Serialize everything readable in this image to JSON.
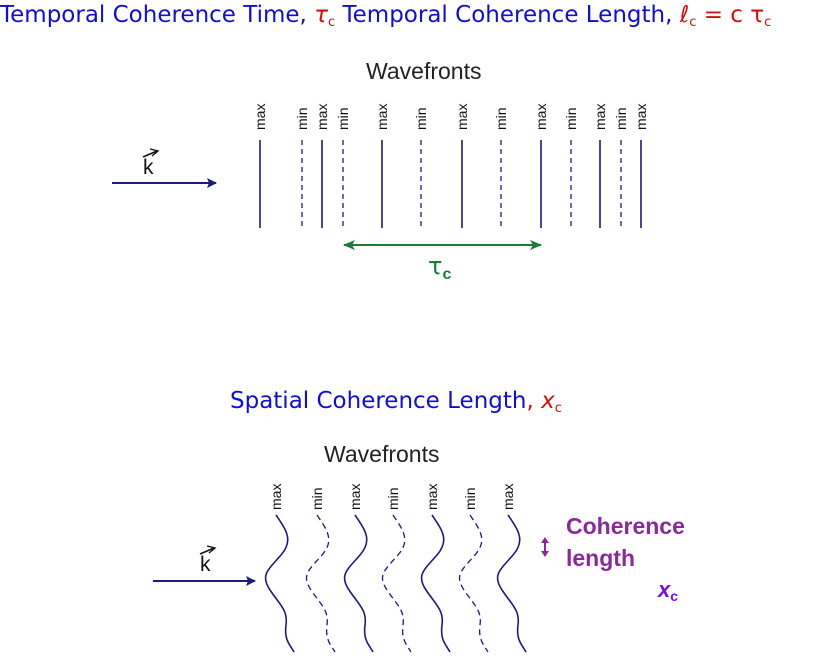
{
  "title_top": {
    "part1": "Temporal Coherence Time, ",
    "tau_symbol": "τ",
    "tau_sub": "c",
    "part2": " Temporal Coherence Length, ",
    "ell_symbol": "ℓ",
    "ell_sub": "c",
    "eq": " = c τ",
    "eq_sub": "c"
  },
  "title_bottom": {
    "part1": "Spatial Coherence Length",
    "comma": ", ",
    "x_symbol": "x",
    "x_sub": "c"
  },
  "temporal_diagram": {
    "heading": "Wavefronts",
    "k_label": "k",
    "wavefront_labels": [
      "max",
      "min",
      "max",
      "min",
      "max",
      "min",
      "max",
      "min",
      "max",
      "min",
      "max",
      "min",
      "max"
    ],
    "tau_symbol": "τ",
    "tau_sub": "c"
  },
  "spatial_diagram": {
    "heading": "Wavefronts",
    "k_label": "k",
    "wavefront_labels": [
      "max",
      "min",
      "max",
      "min",
      "max",
      "min",
      "max"
    ],
    "coherence_line1": "Coherence",
    "coherence_line2": "length",
    "xc_symbol": "x",
    "xc_sub": "c"
  },
  "colors": {
    "blue_text": "#1010c8",
    "red_text": "#d01010",
    "navy_lines": "#1c1c7a",
    "green_arrow": "#1a7a3a",
    "purple": "#8a2a9a",
    "violet": "#7a10d8"
  }
}
